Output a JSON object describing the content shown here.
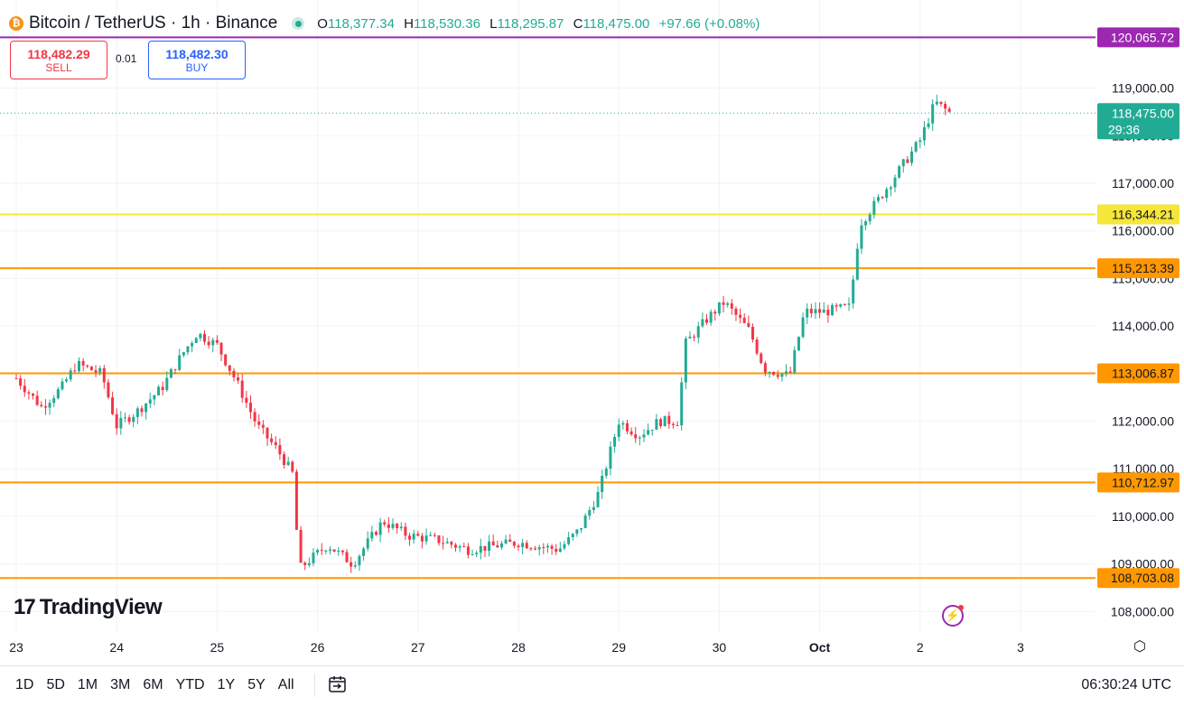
{
  "header": {
    "coin_glyph": "₿",
    "title": "Bitcoin / TetherUS · 1h · Binance",
    "ohlc": {
      "o_label": "O",
      "o_value": "118,377.34",
      "h_label": "H",
      "h_value": "118,530.36",
      "l_label": "L",
      "l_value": "118,295.87",
      "c_label": "C",
      "c_value": "118,475.00",
      "change": "+97.66 (+0.08%)"
    }
  },
  "trade": {
    "sell_price": "118,482.29",
    "sell_label": "SELL",
    "spread": "0.01",
    "buy_price": "118,482.30",
    "buy_label": "BUY"
  },
  "branding": {
    "logo_mark": "17",
    "logo_text": "TradingView"
  },
  "bottom_bar": {
    "ranges": [
      "1D",
      "5D",
      "1M",
      "3M",
      "6M",
      "YTD",
      "1Y",
      "5Y",
      "All"
    ],
    "clock": "06:30:24 UTC"
  },
  "colors": {
    "up": "#22ab94",
    "down": "#f23645",
    "purple": "#9c27b0",
    "yellow": "#f5e63a",
    "orange": "#ff9800",
    "grid": "#f0f3fa"
  },
  "chart_data": {
    "type": "candlestick",
    "ylim": [
      107600,
      120400
    ],
    "y_ticks": [
      108000,
      109000,
      110000,
      111000,
      112000,
      113000,
      114000,
      115000,
      116000,
      117000,
      118000,
      119000
    ],
    "y_tick_labels": [
      "108,000.00",
      "109,000.00",
      "110,000.00",
      "111,000.00",
      "112,000.00",
      "113,000.00",
      "114,000.00",
      "115,000.00",
      "116,000.00",
      "117,000.00",
      "118,000.00",
      "119,000.00"
    ],
    "x_labels": [
      {
        "label": "23",
        "day": 0
      },
      {
        "label": "24",
        "day": 1
      },
      {
        "label": "25",
        "day": 2
      },
      {
        "label": "26",
        "day": 3
      },
      {
        "label": "27",
        "day": 4
      },
      {
        "label": "28",
        "day": 5
      },
      {
        "label": "29",
        "day": 6
      },
      {
        "label": "30",
        "day": 7
      },
      {
        "label": "Oct",
        "day": 8
      },
      {
        "label": "2",
        "day": 9
      },
      {
        "label": "3",
        "day": 10
      }
    ],
    "levels": [
      {
        "value": 120065.72,
        "label": "120,065.72",
        "color": "#9c27b0",
        "text_color": "#ffffff"
      },
      {
        "value": 116344.21,
        "label": "116,344.21",
        "color": "#f5e63a",
        "text_color": "#131722"
      },
      {
        "value": 115213.39,
        "label": "115,213.39",
        "color": "#ff9800",
        "text_color": "#131722"
      },
      {
        "value": 113006.87,
        "label": "113,006.87",
        "color": "#ff9800",
        "text_color": "#131722"
      },
      {
        "value": 110712.97,
        "label": "110,712.97",
        "color": "#ff9800",
        "text_color": "#131722"
      },
      {
        "value": 108703.08,
        "label": "108,703.08",
        "color": "#ff9800",
        "text_color": "#131722"
      }
    ],
    "last_price": {
      "value": 118475.0,
      "label": "118,475.00",
      "countdown": "29:36"
    },
    "series": [
      {
        "name": "BTCUSDT 1h",
        "anchors": [
          [
            0.0,
            112900
          ],
          [
            0.25,
            112300
          ],
          [
            0.45,
            112700
          ],
          [
            0.6,
            113200
          ],
          [
            0.85,
            113000
          ],
          [
            1.0,
            111900
          ],
          [
            1.2,
            112200
          ],
          [
            1.45,
            112700
          ],
          [
            1.65,
            113400
          ],
          [
            1.8,
            113850
          ],
          [
            2.0,
            113600
          ],
          [
            2.2,
            112800
          ],
          [
            2.4,
            111900
          ],
          [
            2.6,
            111400
          ],
          [
            2.75,
            110900
          ],
          [
            2.82,
            108900
          ],
          [
            3.1,
            109400
          ],
          [
            3.35,
            109000
          ],
          [
            3.65,
            109900
          ],
          [
            3.9,
            109600
          ],
          [
            4.2,
            109500
          ],
          [
            4.5,
            109300
          ],
          [
            5.0,
            109450
          ],
          [
            5.4,
            109300
          ],
          [
            5.6,
            109700
          ],
          [
            5.8,
            110500
          ],
          [
            6.0,
            112000
          ],
          [
            6.2,
            111700
          ],
          [
            6.4,
            112000
          ],
          [
            6.6,
            112000
          ],
          [
            6.65,
            113600
          ],
          [
            6.9,
            114200
          ],
          [
            7.05,
            114500
          ],
          [
            7.3,
            113900
          ],
          [
            7.45,
            113100
          ],
          [
            7.7,
            112950
          ],
          [
            7.85,
            114300
          ],
          [
            8.05,
            114300
          ],
          [
            8.3,
            114400
          ],
          [
            8.4,
            116150
          ],
          [
            8.6,
            116700
          ],
          [
            8.8,
            117300
          ],
          [
            9.0,
            117900
          ],
          [
            9.15,
            118700
          ],
          [
            9.3,
            118475
          ]
        ]
      }
    ]
  }
}
